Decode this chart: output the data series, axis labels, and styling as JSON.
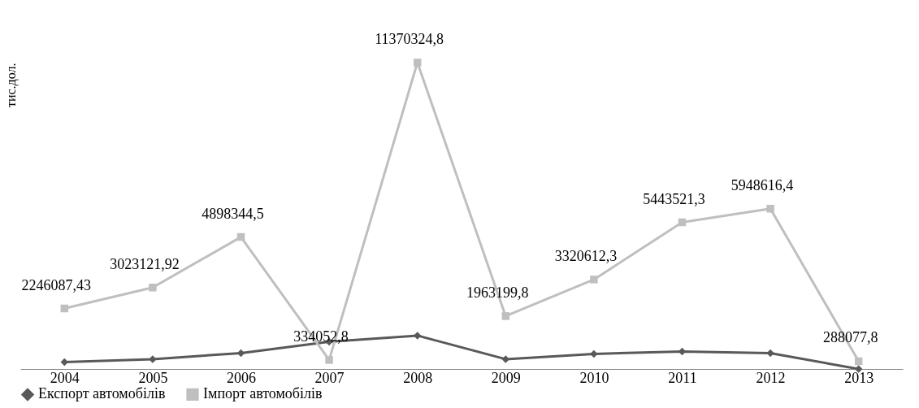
{
  "chart_data": {
    "type": "line",
    "ylabel": "тис.дол.",
    "categories": [
      "2004",
      "2005",
      "2006",
      "2007",
      "2008",
      "2009",
      "2010",
      "2011",
      "2012",
      "2013"
    ],
    "series": [
      {
        "name": "Експорт автомобілів",
        "color": "#595959",
        "marker": "diamond",
        "values": [
          253000,
          365000,
          590000,
          1010000,
          1240000,
          365000,
          560000,
          646000,
          590000,
          0
        ]
      },
      {
        "name": "Імпорт автомобілів",
        "color": "#bfbfbf",
        "marker": "square",
        "values": [
          2246087.43,
          3023121.92,
          4898344.5,
          334052.8,
          11370324.8,
          1963199.8,
          3320612.3,
          5443521.3,
          5948616.4,
          288077.8
        ],
        "value_labels": [
          "2246087,43",
          "3023121,92",
          "4898344,5",
          "334052,8",
          "11370324,8",
          "1963199,8",
          "3320612,3",
          "5443521,3",
          "5948616,4",
          "288077,8"
        ]
      }
    ],
    "legend": "bottom",
    "grid": false,
    "line_style": "solid"
  }
}
